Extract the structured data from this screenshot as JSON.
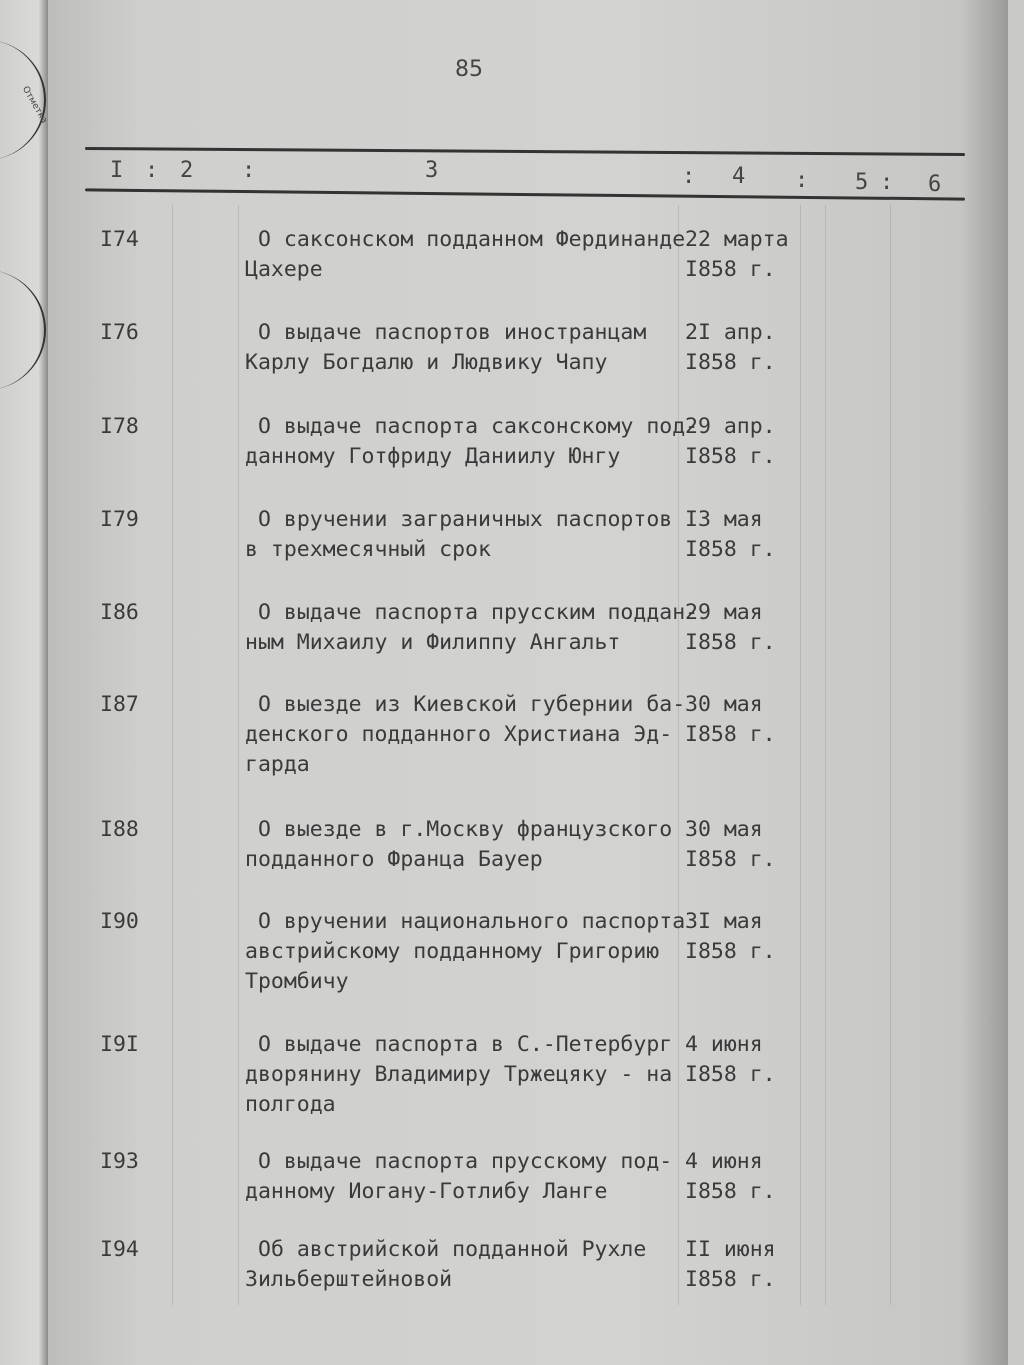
{
  "page_number": "85",
  "left_page_label": "Отметка",
  "column_header": [
    "I",
    ":",
    "2",
    ":",
    "3",
    ":",
    "4",
    ":",
    "5",
    ":",
    "6"
  ],
  "entries": [
    {
      "num": "I74",
      "lines": [
        "О саксонском подданном Фердинанде",
        "Цахере"
      ],
      "date": [
        "22 марта",
        "I858 г."
      ]
    },
    {
      "num": "I76",
      "lines": [
        "О выдаче паспортов иностранцам",
        "Карлу Богдалю и Людвику Чапу"
      ],
      "date": [
        "2I апр.",
        "I858 г."
      ]
    },
    {
      "num": "I78",
      "lines": [
        "О выдаче паспорта саксонскому под-",
        "данному Готфриду Даниилу Юнгу"
      ],
      "date": [
        "29 апр.",
        "I858 г."
      ]
    },
    {
      "num": "I79",
      "lines": [
        "О вручении заграничных паспортов",
        "в трехмесячный срок"
      ],
      "date": [
        "I3 мая",
        "I858 г."
      ]
    },
    {
      "num": "I86",
      "lines": [
        "О выдаче паспорта прусским поддан-",
        "ным Михаилу и Филиппу Ангальт"
      ],
      "date": [
        "29 мая",
        "I858 г."
      ]
    },
    {
      "num": "I87",
      "lines": [
        "О выезде из Киевской губернии ба-",
        "денского подданного Христиана Эд-",
        "гарда"
      ],
      "date": [
        "30 мая",
        "I858 г."
      ]
    },
    {
      "num": "I88",
      "lines": [
        "О выезде в г.Москву французского",
        "подданного Франца Бауер"
      ],
      "date": [
        "30 мая",
        "I858 г."
      ]
    },
    {
      "num": "I90",
      "lines": [
        "О вручении национального паспорта",
        "австрийскому подданному Григорию",
        "Тромбичу"
      ],
      "date": [
        "3I мая",
        "I858 г."
      ]
    },
    {
      "num": "I9I",
      "lines": [
        "О выдаче паспорта в С.-Петербург",
        "дворянину Владимиру Тржецяку - на",
        "полгода"
      ],
      "date": [
        "4 июня",
        "I858 г."
      ]
    },
    {
      "num": "I93",
      "lines": [
        "О выдаче паспорта прусскому под-",
        "данному Иогану-Готлибу Ланге"
      ],
      "date": [
        "4 июня",
        "I858 г."
      ]
    },
    {
      "num": "I94",
      "lines": [
        "Об австрийской подданной Рухле",
        "Зильберштейновой"
      ],
      "date": [
        "II июня",
        "I858 г."
      ]
    }
  ]
}
